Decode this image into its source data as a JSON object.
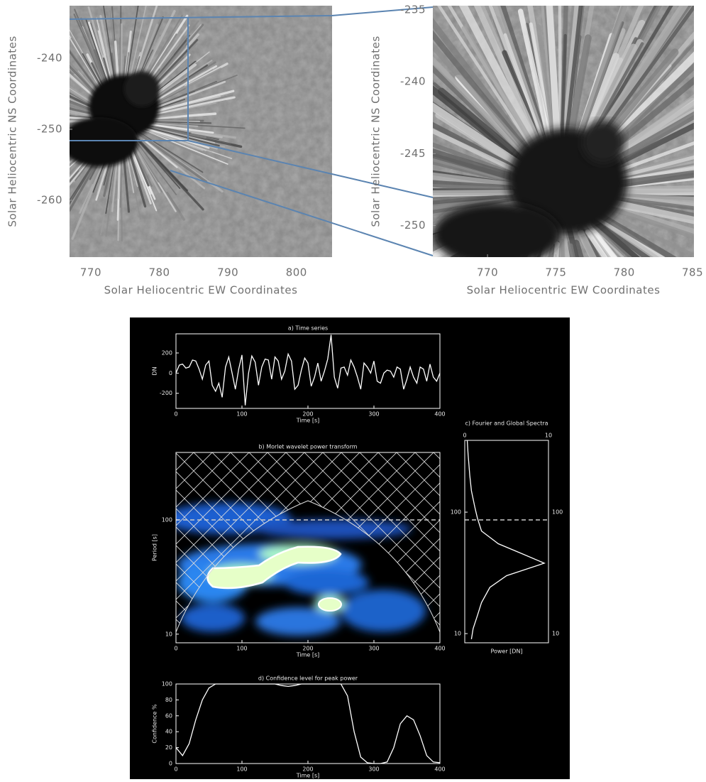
{
  "chart_data": [
    {
      "type": "image",
      "xlabel": "Solar Heliocentric EW Coordinates",
      "ylabel": "Solar Heliocentric NS Coordinates",
      "xlim": [
        766.9,
        805.2
      ],
      "ylim": [
        -268,
        -232.6
      ],
      "xticks": [
        770,
        780,
        790,
        800
      ],
      "yticks": [
        -260,
        -250,
        -240
      ]
    },
    {
      "type": "image",
      "xlabel": "Solar Heliocentric EW Coordinates",
      "ylabel": "Solar Heliocentric NS Coordinates",
      "xlim": [
        766,
        785.1
      ],
      "ylim": [
        -252.2,
        -234.7
      ],
      "xticks": [
        770,
        775,
        780,
        785
      ],
      "yticks": [
        -250,
        -245,
        -240,
        -235
      ]
    },
    {
      "type": "line",
      "title": "a) Time series",
      "xlabel": "Time [s]",
      "ylabel": "DN",
      "color": "#ffffff",
      "xlim": [
        0,
        400
      ],
      "ylim": [
        -350,
        390
      ],
      "xticks": [
        0,
        100,
        200,
        300,
        400
      ],
      "yticks": [
        -200,
        0,
        200
      ],
      "x": [
        0,
        5,
        10,
        15,
        20,
        25,
        30,
        35,
        40,
        45,
        50,
        55,
        60,
        65,
        70,
        75,
        80,
        85,
        90,
        95,
        100,
        105,
        110,
        115,
        120,
        125,
        130,
        135,
        140,
        145,
        150,
        155,
        160,
        165,
        170,
        175,
        180,
        185,
        190,
        195,
        200,
        205,
        210,
        215,
        220,
        225,
        230,
        235,
        240,
        245,
        250,
        255,
        260,
        265,
        270,
        275,
        280,
        285,
        290,
        295,
        300,
        305,
        310,
        315,
        320,
        325,
        330,
        335,
        340,
        345,
        350,
        355,
        360,
        365,
        370,
        375,
        380,
        385,
        390,
        395,
        400
      ],
      "values": [
        0,
        80,
        90,
        50,
        60,
        130,
        120,
        40,
        -60,
        80,
        120,
        -120,
        -180,
        -100,
        -240,
        60,
        160,
        0,
        -160,
        40,
        180,
        -320,
        0,
        170,
        110,
        -120,
        60,
        140,
        130,
        -60,
        160,
        120,
        -60,
        20,
        190,
        120,
        -160,
        -120,
        30,
        150,
        100,
        -130,
        -40,
        100,
        -80,
        20,
        140,
        380,
        -40,
        -150,
        50,
        60,
        -20,
        130,
        60,
        -40,
        -160,
        100,
        60,
        0,
        120,
        -80,
        -100,
        0,
        30,
        20,
        -40,
        60,
        40,
        -160,
        -60,
        60,
        -40,
        -100,
        60,
        40,
        -80,
        90,
        -40,
        -80,
        0
      ]
    },
    {
      "type": "wavelet",
      "title": "b) Morlet wavelet power transform",
      "xlabel": "Time [s]",
      "ylabel": "Period [s]",
      "xlim": [
        0,
        400
      ],
      "ylim": [
        8.4,
        390
      ],
      "log_y": true,
      "xticks": [
        0,
        100,
        200,
        300,
        400
      ],
      "yticks": [
        10,
        100
      ]
    },
    {
      "type": "line",
      "title": "c) Fourier and Global Spectra",
      "xlabel": "Power [DN]",
      "color": "#ffffff",
      "xlim": [
        0,
        10
      ],
      "ylim": [
        8.4,
        390
      ],
      "log_y": true,
      "xaxis_position": "top",
      "xticks": [
        0,
        10
      ],
      "yticks": [
        10,
        100
      ],
      "x": [
        0.3,
        0.4,
        0.6,
        0.8,
        1.2,
        1.5,
        2,
        4,
        7,
        9.5,
        5,
        3,
        2,
        1.5,
        1,
        0.8
      ],
      "values": [
        390,
        300,
        200,
        150,
        110,
        90,
        70,
        55,
        45,
        38,
        30,
        24,
        18,
        14,
        11,
        9
      ]
    },
    {
      "type": "line",
      "title": "d) Confidence level for peak power",
      "xlabel": "Time [s]",
      "ylabel": "Confidence %",
      "color": "#ffffff",
      "xlim": [
        0,
        400
      ],
      "ylim": [
        0,
        100
      ],
      "xticks": [
        0,
        100,
        200,
        300,
        400
      ],
      "yticks": [
        0,
        20,
        40,
        60,
        80,
        100
      ],
      "x": [
        0,
        10,
        20,
        30,
        40,
        50,
        60,
        70,
        80,
        90,
        100,
        110,
        120,
        130,
        140,
        150,
        160,
        170,
        180,
        190,
        200,
        210,
        220,
        230,
        240,
        250,
        260,
        270,
        280,
        290,
        300,
        310,
        320,
        330,
        340,
        350,
        360,
        370,
        380,
        390,
        400
      ],
      "values": [
        20,
        10,
        25,
        55,
        80,
        95,
        100,
        100,
        100,
        100,
        100,
        100,
        100,
        100,
        100,
        100,
        98,
        97,
        98,
        100,
        100,
        100,
        100,
        100,
        100,
        100,
        85,
        40,
        8,
        1,
        0,
        0,
        2,
        20,
        50,
        60,
        55,
        35,
        10,
        2,
        1
      ]
    }
  ]
}
